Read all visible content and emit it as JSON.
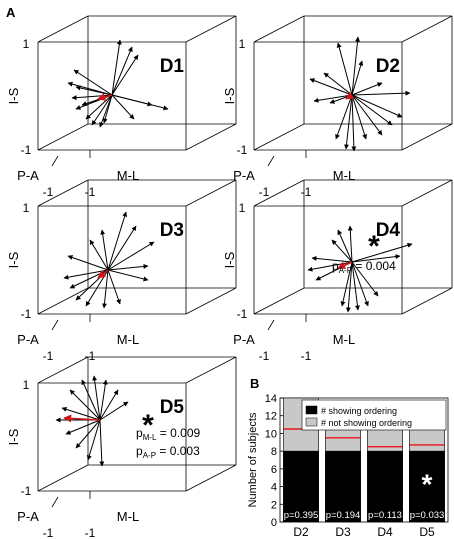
{
  "figure": {
    "panel_a_label": "A",
    "panel_b_label": "B"
  },
  "axes": {
    "vertical": "I-S",
    "depth": "P-A",
    "horizontal": "M-L",
    "tick_pos": "1",
    "tick_neg": "-1"
  },
  "panels": [
    {
      "name": "D1",
      "annotation": [],
      "asterisk": false
    },
    {
      "name": "D2",
      "annotation": [],
      "asterisk": false
    },
    {
      "name": "D3",
      "annotation": [],
      "asterisk": false
    },
    {
      "name": "D4",
      "annotation": [
        {
          "p": "p",
          "sub": "A-P",
          "val": " = 0.004"
        }
      ],
      "asterisk": true
    },
    {
      "name": "D5",
      "annotation": [
        {
          "p": "p",
          "sub": "M-L",
          "val": " = 0.009"
        },
        {
          "p": "p",
          "sub": "A-P",
          "val": " = 0.003"
        }
      ],
      "asterisk": true
    }
  ],
  "chart_data": {
    "type": "bar",
    "ylabel": "Number of subjects",
    "categories": [
      "D2",
      "D3",
      "D4",
      "D5"
    ],
    "ylim": [
      0,
      14
    ],
    "yticks": [
      0,
      2,
      4,
      6,
      8,
      10,
      12,
      14
    ],
    "series": [
      {
        "name": "# showing ordering",
        "values": [
          8,
          8,
          8,
          8
        ],
        "color": "#000000"
      },
      {
        "name": "# not showing ordering",
        "values": [
          6,
          4,
          3,
          3
        ],
        "color": "#c8c8c8"
      }
    ],
    "chance_level": [
      10.5,
      9.5,
      8.5,
      8.7
    ],
    "chance_color": "#e8141a",
    "p_labels": [
      "p=0.395",
      "p=0.194",
      "p=0.113",
      "p=0.033"
    ],
    "significant": [
      false,
      false,
      false,
      true
    ],
    "asterisk": "*",
    "legend_position": "top-right"
  }
}
